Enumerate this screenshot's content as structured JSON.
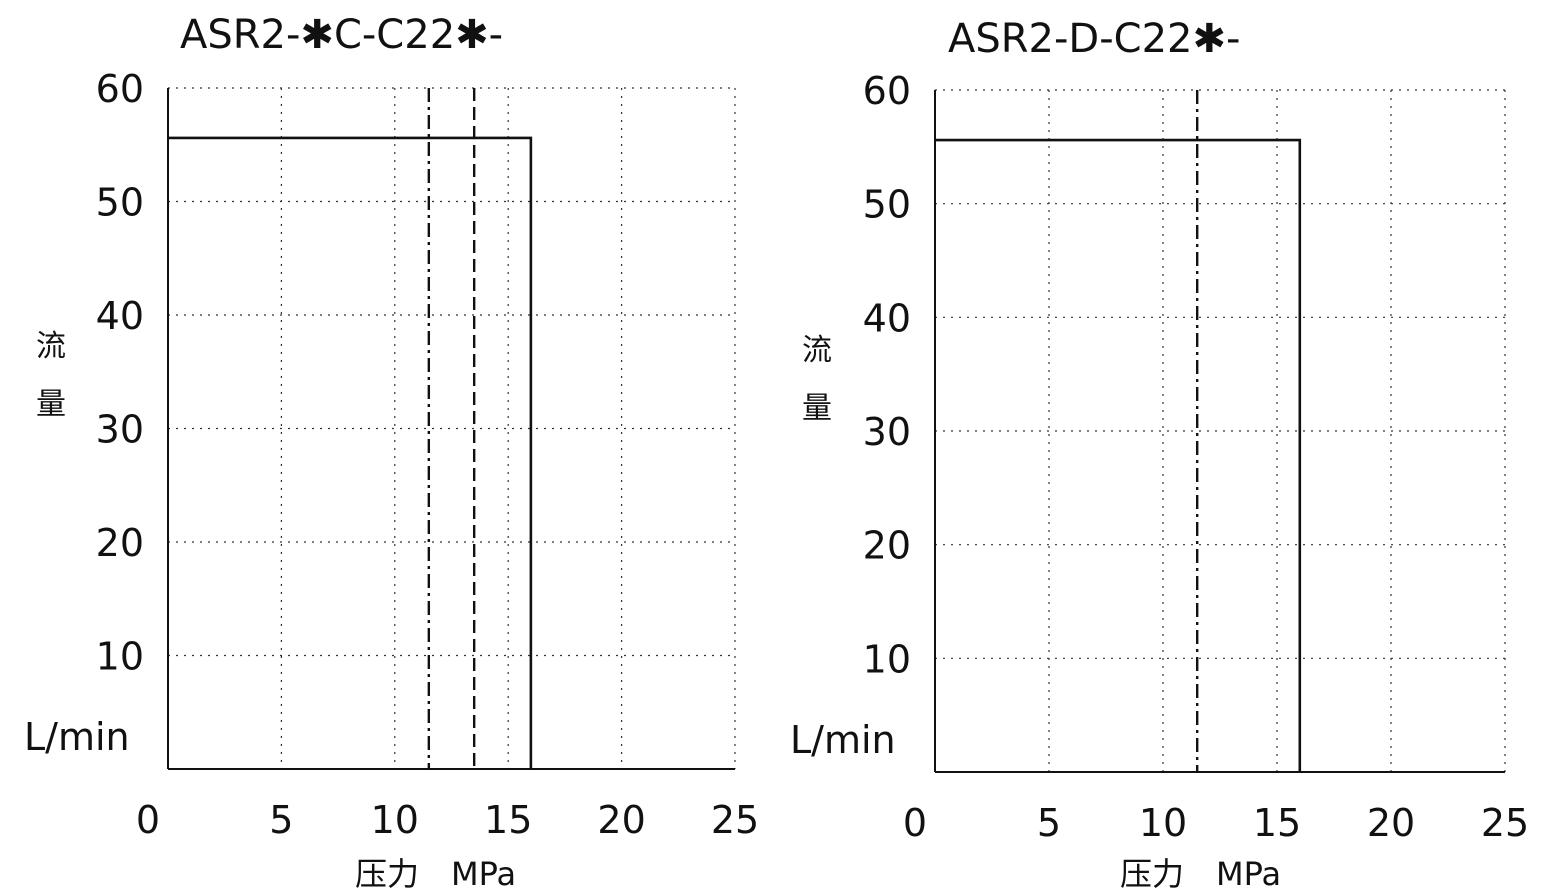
{
  "chart_data": [
    {
      "type": "line",
      "title": "ASR2-✱C-C22✱-",
      "xlabel": "压力　MPa",
      "ylabel": [
        "流",
        "量"
      ],
      "yunit": "L/min",
      "xlim": [
        0,
        25
      ],
      "ylim": [
        0,
        60
      ],
      "xticks": [
        "0",
        "5",
        "10",
        "15",
        "20",
        "25"
      ],
      "yticks": [
        "10",
        "20",
        "30",
        "40",
        "50",
        "60"
      ],
      "grid": true,
      "series": [
        {
          "style": "solid",
          "points": [
            [
              0,
              55.6
            ],
            [
              16,
              55.6
            ],
            [
              16,
              0
            ]
          ]
        }
      ],
      "vlines": [
        {
          "x": 11.5,
          "style": "dash-dot"
        },
        {
          "x": 13.5,
          "style": "dashed"
        }
      ]
    },
    {
      "type": "line",
      "title": "ASR2-D-C22✱-",
      "xlabel": "压力　MPa",
      "ylabel": [
        "流",
        "量"
      ],
      "yunit": "L/min",
      "xlim": [
        0,
        25
      ],
      "ylim": [
        0,
        60
      ],
      "xticks": [
        "0",
        "5",
        "10",
        "15",
        "20",
        "25"
      ],
      "yticks": [
        "10",
        "20",
        "30",
        "40",
        "50",
        "60"
      ],
      "grid": true,
      "series": [
        {
          "style": "solid",
          "points": [
            [
              0,
              55.6
            ],
            [
              16,
              55.6
            ],
            [
              16,
              0
            ]
          ]
        }
      ],
      "vlines": [
        {
          "x": 11.5,
          "style": "dash-dot"
        }
      ]
    }
  ]
}
